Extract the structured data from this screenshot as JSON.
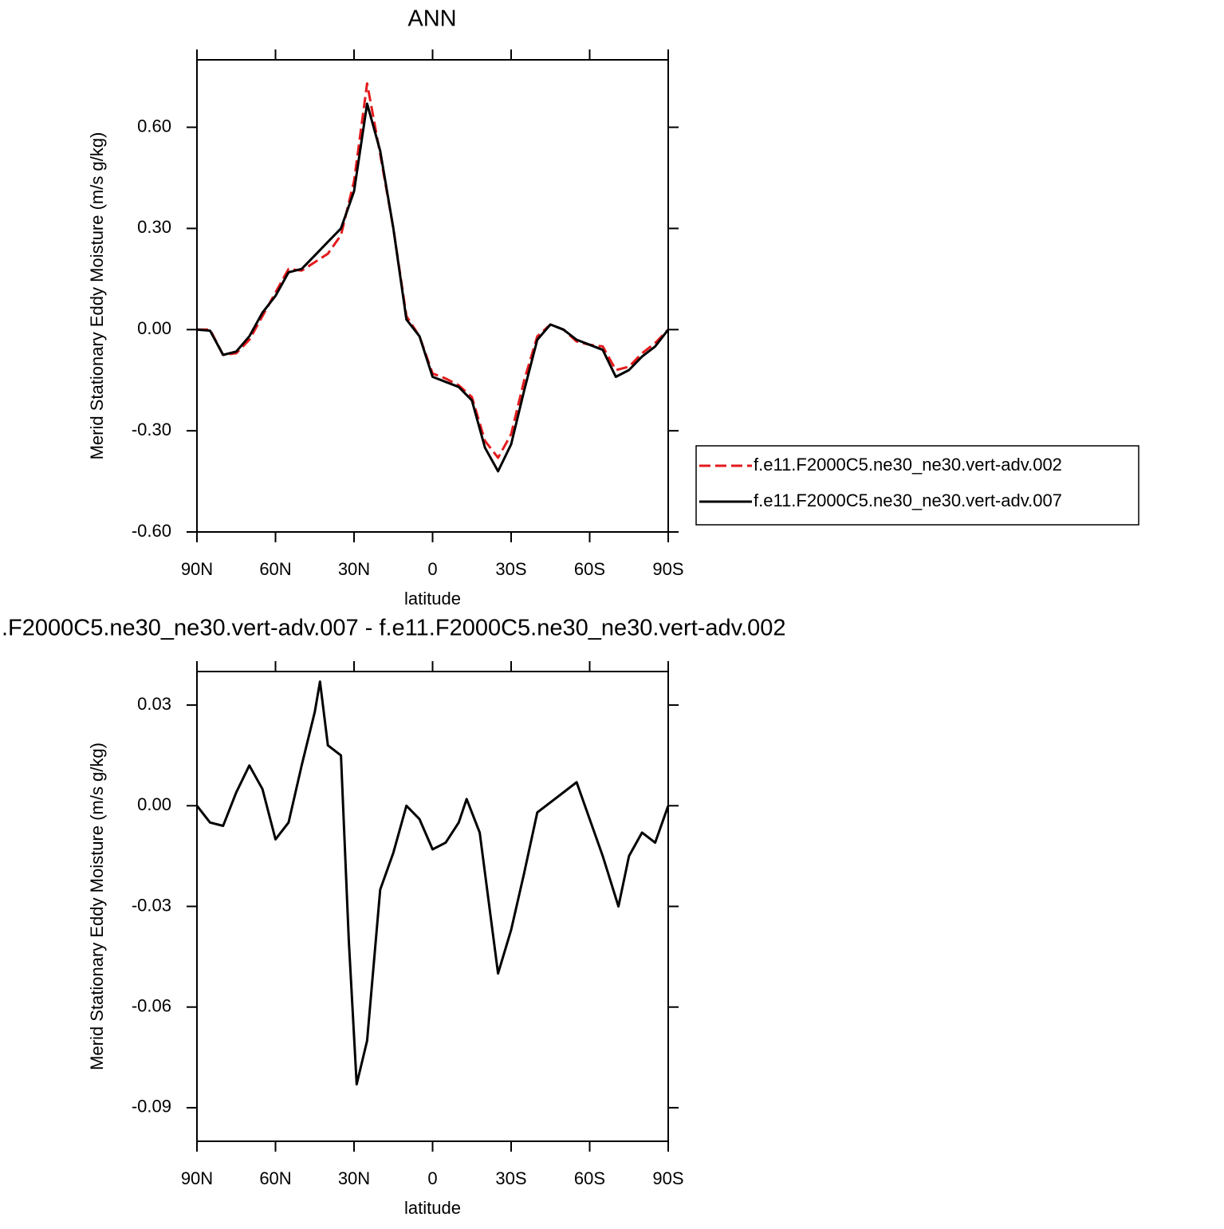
{
  "chart_data": [
    {
      "type": "line",
      "title": "ANN",
      "xlabel": "latitude",
      "ylabel": "Merid Stationary Eddy Moisture (m/s g/kg)",
      "x": [
        90,
        85,
        80,
        75,
        70,
        65,
        60,
        55,
        50,
        45,
        40,
        35,
        30,
        25,
        20,
        15,
        10,
        5,
        0,
        -5,
        -10,
        -15,
        -20,
        -25,
        -30,
        -35,
        -40,
        -45,
        -50,
        -55,
        -60,
        -65,
        -70,
        -75,
        -80,
        -85,
        -90
      ],
      "series": [
        {
          "name": "f.e11.F2000C5.ne30_ne30.vert-adv.002",
          "color": "#e41a1c",
          "dashed": true,
          "values": [
            0,
            0,
            -0.075,
            -0.07,
            -0.03,
            0.04,
            0.11,
            0.18,
            0.175,
            0.2,
            0.225,
            0.28,
            0.44,
            0.73,
            0.52,
            0.3,
            0.04,
            -0.02,
            -0.13,
            -0.145,
            -0.165,
            -0.2,
            -0.33,
            -0.38,
            -0.31,
            -0.15,
            -0.02,
            0.015,
            0.0,
            -0.035,
            -0.045,
            -0.05,
            -0.12,
            -0.11,
            -0.07,
            -0.04,
            0
          ]
        },
        {
          "name": "f.e11.F2000C5.ne30_ne30.vert-adv.007",
          "color": "#000000",
          "dashed": false,
          "values": [
            0,
            -0.003,
            -0.075,
            -0.065,
            -0.02,
            0.05,
            0.1,
            0.17,
            0.18,
            0.22,
            0.26,
            0.3,
            0.41,
            0.67,
            0.53,
            0.3,
            0.03,
            -0.02,
            -0.14,
            -0.155,
            -0.17,
            -0.21,
            -0.35,
            -0.42,
            -0.34,
            -0.18,
            -0.03,
            0.015,
            0.0,
            -0.03,
            -0.045,
            -0.06,
            -0.14,
            -0.12,
            -0.08,
            -0.05,
            0
          ]
        }
      ],
      "xlim": [
        90,
        -90
      ],
      "xticks": [
        {
          "value": 90,
          "label": "90N"
        },
        {
          "value": 60,
          "label": "60N"
        },
        {
          "value": 30,
          "label": "30N"
        },
        0,
        {
          "value": -30,
          "label": "30S"
        },
        {
          "value": -60,
          "label": "60S"
        },
        {
          "value": -90,
          "label": "90S"
        }
      ],
      "ylim": [
        -0.6,
        0.8
      ],
      "yticks": [
        {
          "value": -0.6,
          "label": "-0.60"
        },
        {
          "value": -0.3,
          "label": "-0.30"
        },
        {
          "value": 0,
          "label": "0.00"
        },
        {
          "value": 0.3,
          "label": "0.30"
        },
        {
          "value": 0.6,
          "label": "0.60"
        }
      ],
      "legend": "right"
    },
    {
      "type": "line",
      "title": ".F2000C5.ne30_ne30.vert-adv.007 - f.e11.F2000C5.ne30_ne30.vert-adv.002",
      "xlabel": "latitude",
      "ylabel": "Merid Stationary Eddy Moisture (m/s g/kg)",
      "x": [
        90,
        85,
        80,
        75,
        70,
        65,
        60,
        55,
        50,
        45,
        43,
        40,
        35,
        32,
        29,
        25,
        20,
        15,
        10,
        5,
        0,
        -5,
        -10,
        -13,
        -18,
        -25,
        -30,
        -35,
        -40,
        -45,
        -50,
        -55,
        -60,
        -65,
        -71,
        -75,
        -80,
        -85,
        -90
      ],
      "series": [
        {
          "color": "#000000",
          "dashed": false,
          "values": [
            0,
            -0.005,
            -0.006,
            0.004,
            0.012,
            0.005,
            -0.01,
            -0.005,
            0.012,
            0.028,
            0.037,
            0.018,
            0.015,
            -0.04,
            -0.083,
            -0.07,
            -0.025,
            -0.014,
            0.0,
            -0.004,
            -0.013,
            -0.011,
            -0.005,
            0.002,
            -0.008,
            -0.05,
            -0.037,
            -0.02,
            -0.002,
            0.001,
            0.004,
            0.007,
            -0.004,
            -0.015,
            -0.03,
            -0.015,
            -0.008,
            -0.011,
            0
          ]
        }
      ],
      "xlim": [
        90,
        -90
      ],
      "xticks": [
        {
          "value": 90,
          "label": "90N"
        },
        {
          "value": 60,
          "label": "60N"
        },
        {
          "value": 30,
          "label": "30N"
        },
        0,
        {
          "value": -30,
          "label": "30S"
        },
        {
          "value": -60,
          "label": "60S"
        },
        {
          "value": -90,
          "label": "90S"
        }
      ],
      "ylim": [
        -0.1,
        0.04
      ],
      "yticks": [
        {
          "value": -0.09,
          "label": "-0.09"
        },
        {
          "value": -0.06,
          "label": "-0.06"
        },
        {
          "value": -0.03,
          "label": "-0.03"
        },
        {
          "value": 0,
          "label": "0.00"
        },
        {
          "value": 0.03,
          "label": "0.03"
        }
      ]
    }
  ]
}
